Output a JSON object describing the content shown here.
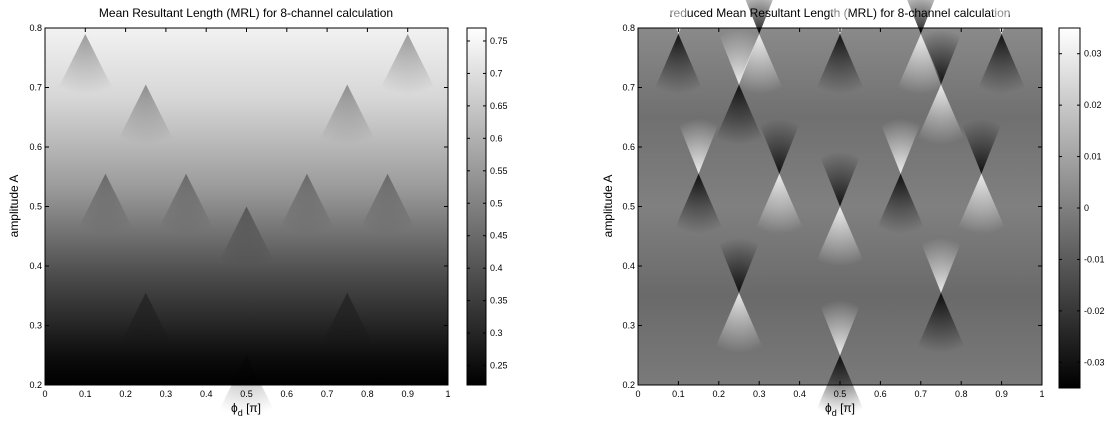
{
  "figure": {
    "panels": [
      {
        "title": "Mean Resultant Length (MRL) for 8-channel calculation",
        "xlabel": "ϕ",
        "xlabel_sub": "d",
        "xlabel_unit": " [π]",
        "ylabel": "amplitude A"
      },
      {
        "title": "reduced Mean Resultant Length (MRL) for 8-channel calculation",
        "xlabel": "ϕ",
        "xlabel_sub": "d",
        "xlabel_unit": " [π]",
        "ylabel": "amplitude A"
      }
    ]
  },
  "chart_data": [
    {
      "type": "heatmap",
      "title": "Mean Resultant Length (MRL) for 8-channel calculation",
      "xlabel": "ϕd [π]",
      "ylabel": "amplitude A",
      "colormap": "gray",
      "xlim": [
        0,
        1
      ],
      "ylim": [
        0.2,
        0.8
      ],
      "xticks": [
        "0",
        "0.1",
        "0.2",
        "0.3",
        "0.4",
        "0.5",
        "0.6",
        "0.7",
        "0.8",
        "0.9",
        "1"
      ],
      "yticks": [
        "0.2",
        "0.3",
        "0.4",
        "0.5",
        "0.6",
        "0.7",
        "0.8"
      ],
      "colorbar": {
        "range": [
          0.22,
          0.77
        ],
        "ticks": [
          "0.25",
          "0.3",
          "0.35",
          "0.4",
          "0.45",
          "0.5",
          "0.55",
          "0.6",
          "0.65",
          "0.7",
          "0.75"
        ]
      },
      "singular_points": [
        {
          "x": 0.5,
          "y": 0.25
        },
        {
          "x": 0.25,
          "y": 0.355
        },
        {
          "x": 0.75,
          "y": 0.355
        },
        {
          "x": 0.5,
          "y": 0.5
        },
        {
          "x": 0.15,
          "y": 0.555
        },
        {
          "x": 0.35,
          "y": 0.555
        },
        {
          "x": 0.65,
          "y": 0.555
        },
        {
          "x": 0.85,
          "y": 0.555
        },
        {
          "x": 0.25,
          "y": 0.705
        },
        {
          "x": 0.75,
          "y": 0.705
        },
        {
          "x": 0.1,
          "y": 0.79
        },
        {
          "x": 0.9,
          "y": 0.79
        }
      ],
      "grid": false
    },
    {
      "type": "heatmap",
      "title": "reduced Mean Resultant Length (MRL) for 8-channel calculation",
      "xlabel": "ϕd [π]",
      "ylabel": "amplitude A",
      "colormap": "gray",
      "xlim": [
        0,
        1
      ],
      "ylim": [
        0.2,
        0.8
      ],
      "xticks": [
        "0",
        "0.1",
        "0.2",
        "0.3",
        "0.4",
        "0.5",
        "0.6",
        "0.7",
        "0.8",
        "0.9",
        "1"
      ],
      "yticks": [
        "0.2",
        "0.3",
        "0.4",
        "0.5",
        "0.6",
        "0.7",
        "0.8"
      ],
      "colorbar": {
        "range": [
          -0.035,
          0.035
        ],
        "ticks": [
          "-0.03",
          "-0.02",
          "-0.01",
          "0",
          "0.01",
          "0.02",
          "0.03"
        ]
      },
      "singular_points": [
        {
          "x": 0.5,
          "y": 0.25
        },
        {
          "x": 0.25,
          "y": 0.355
        },
        {
          "x": 0.75,
          "y": 0.355
        },
        {
          "x": 0.5,
          "y": 0.5
        },
        {
          "x": 0.15,
          "y": 0.555
        },
        {
          "x": 0.35,
          "y": 0.555
        },
        {
          "x": 0.65,
          "y": 0.555
        },
        {
          "x": 0.85,
          "y": 0.555
        },
        {
          "x": 0.25,
          "y": 0.705
        },
        {
          "x": 0.75,
          "y": 0.705
        },
        {
          "x": 0.1,
          "y": 0.79
        },
        {
          "x": 0.3,
          "y": 0.79
        },
        {
          "x": 0.5,
          "y": 0.79
        },
        {
          "x": 0.7,
          "y": 0.79
        },
        {
          "x": 0.9,
          "y": 0.79
        }
      ],
      "grid": false
    }
  ]
}
